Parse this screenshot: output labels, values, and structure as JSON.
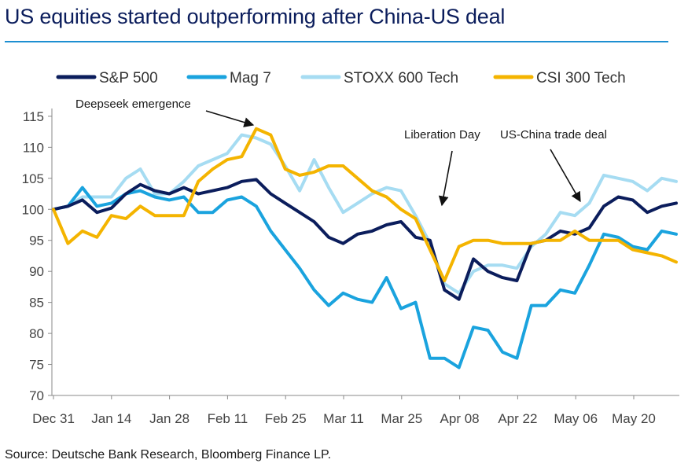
{
  "page": {
    "title": "US equities started outperforming after China-US deal",
    "source": "Source: Deutsche Bank Research, Bloomberg Finance LP.",
    "accent_color": "#1d8fd1",
    "title_color": "#0b1d5c"
  },
  "chart_data": {
    "type": "line",
    "title": "US equities started outperforming after China-US deal",
    "xlabel": "",
    "ylabel": "",
    "x_tick_labels": [
      "Dec 31",
      "Jan 14",
      "Jan 28",
      "Feb 11",
      "Feb 25",
      "Mar 11",
      "Mar 25",
      "Apr 08",
      "Apr 22",
      "May 06",
      "May 20"
    ],
    "y_ticks": [
      70,
      75,
      80,
      85,
      90,
      95,
      100,
      105,
      110,
      115
    ],
    "ylim": [
      70,
      116
    ],
    "x_dates": [
      "Dec 31",
      "Jan 3",
      "Jan 7",
      "Jan 10",
      "Jan 14",
      "Jan 17",
      "Jan 21",
      "Jan 24",
      "Jan 28",
      "Jan 31",
      "Feb 4",
      "Feb 7",
      "Feb 11",
      "Feb 14",
      "Feb 18",
      "Feb 21",
      "Feb 25",
      "Feb 28",
      "Mar 4",
      "Mar 7",
      "Mar 11",
      "Mar 14",
      "Mar 18",
      "Mar 21",
      "Mar 25",
      "Mar 28",
      "Apr 1",
      "Apr 4",
      "Apr 8",
      "Apr 11",
      "Apr 15",
      "Apr 18",
      "Apr 22",
      "Apr 25",
      "Apr 29",
      "May 2",
      "May 6",
      "May 9",
      "May 13",
      "May 16",
      "May 20",
      "May 23",
      "May 27",
      "May 29"
    ],
    "grid": false,
    "legend_position": "top",
    "series": [
      {
        "name": "S&P 500",
        "color": "#0b1d5c",
        "values": [
          100.0,
          100.5,
          101.5,
          99.5,
          100.2,
          102.5,
          104.0,
          103.0,
          102.5,
          103.5,
          102.5,
          103.0,
          103.5,
          104.5,
          104.8,
          102.5,
          101.0,
          99.5,
          98.0,
          95.5,
          94.5,
          96.0,
          96.5,
          97.5,
          98.0,
          95.5,
          95.0,
          87.0,
          85.5,
          92.0,
          90.0,
          89.0,
          88.5,
          94.5,
          95.0,
          96.5,
          96.0,
          97.0,
          100.5,
          102.0,
          101.5,
          99.5,
          100.5,
          101.0
        ]
      },
      {
        "name": "Mag 7",
        "color": "#1aa3de",
        "values": [
          100.0,
          100.5,
          103.5,
          100.5,
          101.0,
          102.5,
          103.0,
          102.0,
          101.5,
          102.0,
          99.5,
          99.5,
          101.5,
          102.0,
          100.5,
          96.5,
          93.5,
          90.5,
          87.0,
          84.5,
          86.5,
          85.5,
          85.0,
          89.0,
          84.0,
          85.0,
          76.0,
          76.0,
          74.5,
          81.0,
          80.5,
          77.0,
          76.0,
          84.5,
          84.5,
          87.0,
          86.5,
          91.0,
          96.0,
          95.5,
          94.0,
          93.5,
          96.5,
          96.0
        ]
      },
      {
        "name": "STOXX 600 Tech",
        "color": "#a6dcf2",
        "values": [
          100.0,
          100.5,
          102.0,
          102.0,
          102.0,
          105.0,
          106.5,
          102.5,
          102.5,
          104.5,
          107.0,
          108.0,
          109.0,
          112.0,
          111.5,
          110.5,
          107.0,
          103.0,
          108.0,
          103.5,
          99.5,
          101.0,
          102.5,
          103.5,
          103.0,
          99.0,
          94.5,
          88.0,
          86.5,
          90.0,
          91.0,
          91.0,
          90.5,
          94.0,
          96.0,
          99.5,
          99.0,
          101.0,
          105.5,
          105.0,
          104.5,
          103.0,
          105.0,
          104.5
        ]
      },
      {
        "name": "CSI 300 Tech",
        "color": "#f4b400",
        "values": [
          100.0,
          94.5,
          96.5,
          95.5,
          99.0,
          98.5,
          100.5,
          99.0,
          99.0,
          99.0,
          104.5,
          106.5,
          108.0,
          108.5,
          113.0,
          112.0,
          106.5,
          105.5,
          106.0,
          107.0,
          107.0,
          105.0,
          103.0,
          102.0,
          100.0,
          98.5,
          93.5,
          88.5,
          94.0,
          95.0,
          95.0,
          94.5,
          94.5,
          94.5,
          95.0,
          95.0,
          96.5,
          95.0,
          95.0,
          95.0,
          93.5,
          93.0,
          92.5,
          91.5
        ]
      }
    ],
    "annotations": [
      {
        "text": "Deepseek emergence",
        "x": "Feb 21",
        "y": 113
      },
      {
        "text": "Liberation Day",
        "x": "Apr 4",
        "y": 99
      },
      {
        "text": "US-China trade deal",
        "x": "May 13",
        "y": 101
      }
    ]
  }
}
